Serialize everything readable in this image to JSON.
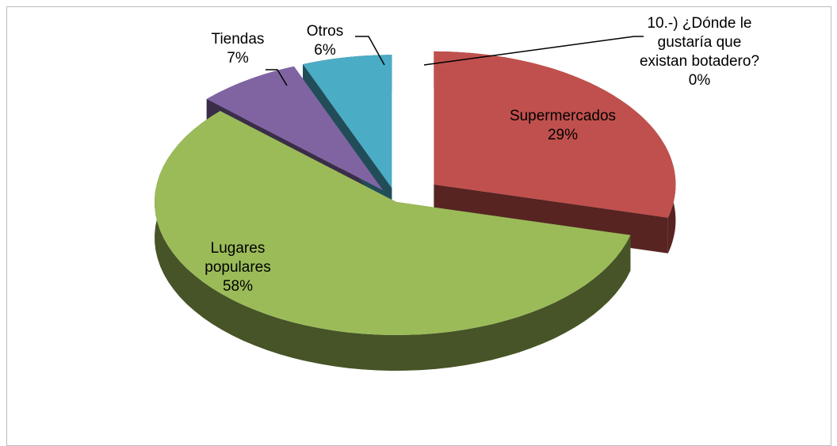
{
  "chart_data": {
    "type": "pie3d",
    "categories": [
      "10.-) ¿Dónde le gustaría que existan botadero?",
      "Supermercados",
      "Lugares populares",
      "Tiendas",
      "Otros"
    ],
    "values": [
      0,
      29,
      58,
      7,
      6
    ],
    "value_labels": [
      "0%",
      "29%",
      "58%",
      "7%",
      "6%"
    ],
    "colors": [
      "#4f81bd",
      "#c0504d",
      "#9bbb59",
      "#8064a2",
      "#4bacc6"
    ]
  }
}
